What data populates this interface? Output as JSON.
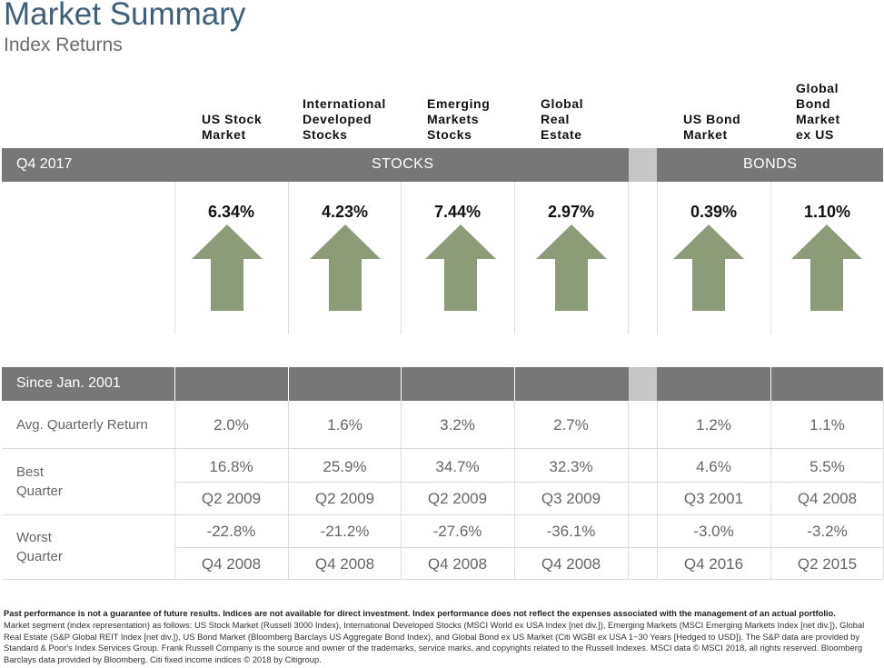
{
  "header": {
    "title": "Market Summary",
    "subtitle": "Index Returns"
  },
  "columns": [
    {
      "label": "US Stock\nMarket"
    },
    {
      "label": "International\nDeveloped\nStocks"
    },
    {
      "label": "Emerging\nMarkets\nStocks"
    },
    {
      "label": "Global\nReal\nEstate"
    },
    {
      "label": "US Bond\nMarket"
    },
    {
      "label": "Global\nBond\nMarket\nex US"
    }
  ],
  "quarter_bar": {
    "period_label": "Q4 2017",
    "stocks_label": "STOCKS",
    "bonds_label": "BONDS"
  },
  "quarter_returns": [
    {
      "value": "6.34%",
      "direction": "up"
    },
    {
      "value": "4.23%",
      "direction": "up"
    },
    {
      "value": "7.44%",
      "direction": "up"
    },
    {
      "value": "2.97%",
      "direction": "up"
    },
    {
      "value": "0.39%",
      "direction": "up"
    },
    {
      "value": "1.10%",
      "direction": "up"
    }
  ],
  "since_bar": {
    "label": "Since Jan. 2001"
  },
  "rows": {
    "avg": {
      "label": "Avg. Quarterly Return",
      "values": [
        "2.0%",
        "1.6%",
        "3.2%",
        "2.7%",
        "1.2%",
        "1.1%"
      ]
    },
    "best": {
      "label": "Best\nQuarter",
      "values": [
        "16.8%",
        "25.9%",
        "34.7%",
        "32.3%",
        "4.6%",
        "5.5%"
      ],
      "quarters": [
        "Q2 2009",
        "Q2 2009",
        "Q2 2009",
        "Q3 2009",
        "Q3 2001",
        "Q4 2008"
      ]
    },
    "worst": {
      "label": "Worst\nQuarter",
      "values": [
        "-22.8%",
        "-21.2%",
        "-27.6%",
        "-36.1%",
        "-3.0%",
        "-3.2%"
      ],
      "quarters": [
        "Q4 2008",
        "Q4 2008",
        "Q4 2008",
        "Q4 2008",
        "Q4 2016",
        "Q2 2015"
      ]
    }
  },
  "disclaimer": {
    "bold": "Past performance is not a guarantee of future results. Indices are not available for direct investment. Index performance does not reflect the expenses associated with the management of an actual portfolio.",
    "body": "Market segment (index representation) as follows: US Stock Market (Russell 3000 Index), International Developed Stocks (MSCI World ex USA Index [net div.]), Emerging Markets (MSCI Emerging Markets Index [net div.]), Global Real Estate (S&P Global REIT Index [net div.]), US Bond Market (Bloomberg Barclays US Aggregate Bond Index), and Global Bond ex US Market (Citi WGBI ex USA 1−30 Years [Hedged to USD]). The S&P data are provided by Standard & Poor's Index Services Group. Frank Russell Company is the source and owner of the trademarks, service marks, and copyrights related to the Russell Indexes. MSCI data © MSCI 2018, all rights reserved. Bloomberg Barclays data provided by Bloomberg. Citi fixed income indices © 2018 by Citigroup."
  },
  "colors": {
    "bar": "#777777",
    "gap": "#c6c6c6",
    "arrow": "#8c9b78",
    "title": "#3e5f7a"
  },
  "icons": {
    "up": "up-arrow-icon"
  }
}
